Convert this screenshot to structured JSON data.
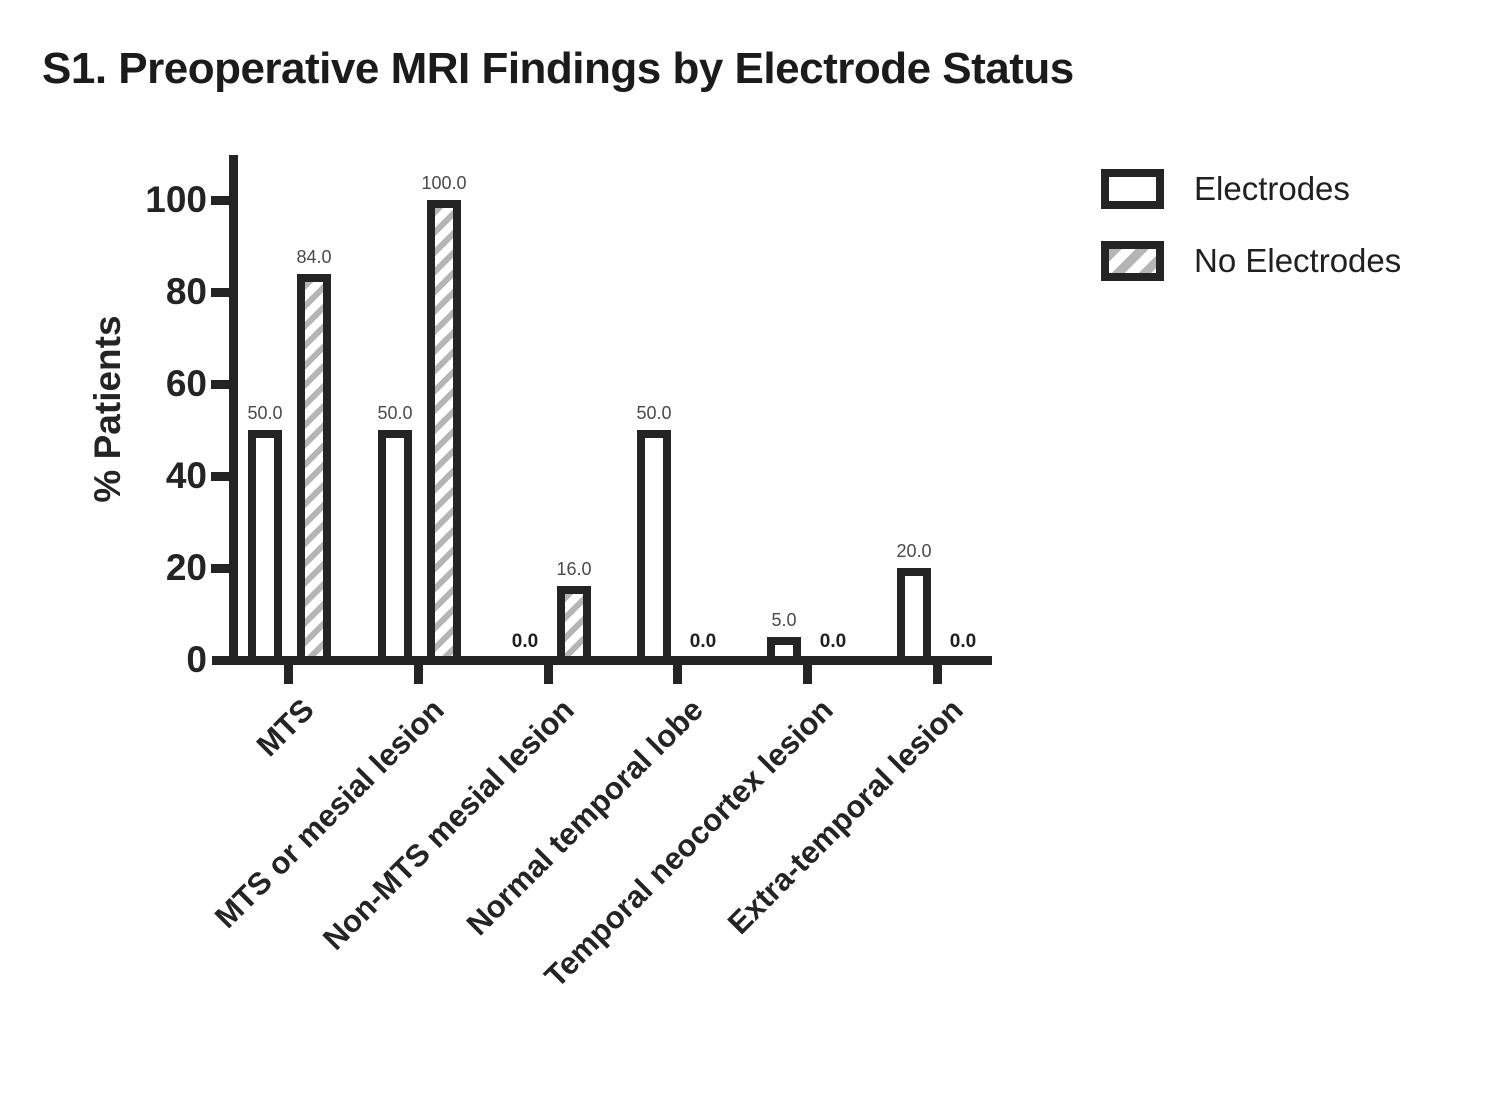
{
  "title": "S1. Preoperative MRI Findings by Electrode Status",
  "chart_data": {
    "type": "bar",
    "title": "S1. Preoperative MRI Findings by Electrode Status",
    "xlabel": "",
    "ylabel": "% Patients",
    "categories": [
      "MTS",
      "MTS or mesial lesion",
      "Non-MTS mesial lesion",
      "Normal temporal lobe",
      "Temporal neocortex lesion",
      "Extra-temporal lesion"
    ],
    "series": [
      {
        "name": "Electrodes",
        "pattern": "open",
        "values": [
          50.0,
          50.0,
          0.0,
          50.0,
          5.0,
          20.0
        ]
      },
      {
        "name": "No Electrodes",
        "pattern": "hatched",
        "values": [
          84.0,
          100.0,
          16.0,
          0.0,
          0.0,
          0.0
        ]
      }
    ],
    "value_labels_decimals": 1,
    "yticks": [
      0,
      20,
      40,
      60,
      80,
      100
    ],
    "ylim": [
      0,
      110
    ],
    "grid": false,
    "legend_position": "top-right",
    "colors": {
      "outline": "#242424",
      "open_fill": "#ffffff",
      "hatch_stripe": "#b5b5b5",
      "value_label": "#4a4a4a",
      "zero_value_label": "#1f1f1f"
    }
  },
  "legend": {
    "items": [
      {
        "label": "Electrodes",
        "swatch": "open"
      },
      {
        "label": "No Electrodes",
        "swatch": "hatched"
      }
    ]
  }
}
